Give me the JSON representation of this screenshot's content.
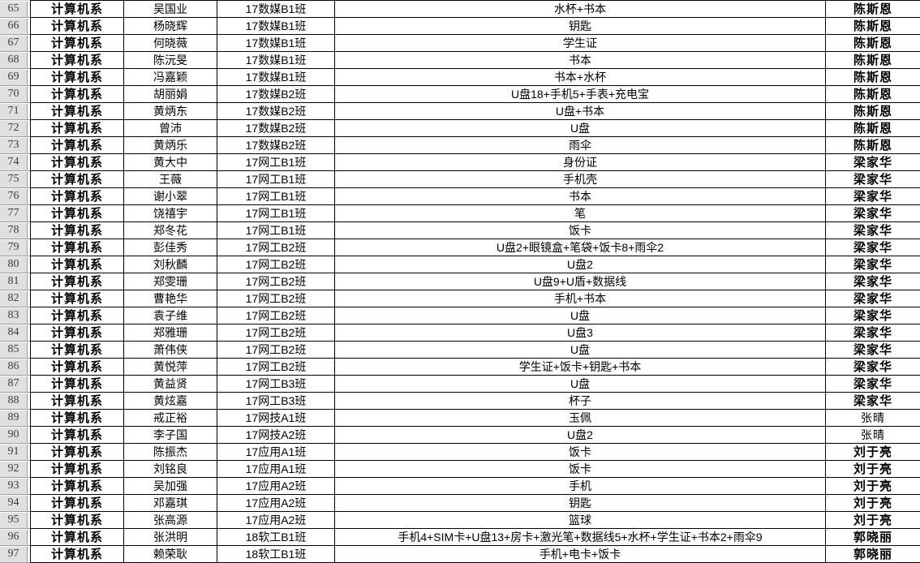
{
  "colors": {
    "grid_line": "#000000",
    "row_header_bg": "#e0e0e0",
    "row_header_text": "#3d3d3d",
    "cell_bg": "#ffffff",
    "cell_text": "#000000"
  },
  "table": {
    "visible_row_range": "65-97",
    "rows": [
      {
        "num": "65",
        "dept": "计算机系",
        "name": "吴国业",
        "cls": "17数媒B1班",
        "items": "水杯+书本",
        "handler": "陈斯恩",
        "handler_bold": true
      },
      {
        "num": "66",
        "dept": "计算机系",
        "name": "杨晓辉",
        "cls": "17数媒B1班",
        "items": "钥匙",
        "handler": "陈斯恩",
        "handler_bold": true
      },
      {
        "num": "67",
        "dept": "计算机系",
        "name": "何晓薇",
        "cls": "17数媒B1班",
        "items": "学生证",
        "handler": "陈斯恩",
        "handler_bold": true
      },
      {
        "num": "68",
        "dept": "计算机系",
        "name": "陈沅旻",
        "cls": "17数媒B1班",
        "items": "书本",
        "handler": "陈斯恩",
        "handler_bold": true
      },
      {
        "num": "69",
        "dept": "计算机系",
        "name": "冯嘉颖",
        "cls": "17数媒B1班",
        "items": "书本+水杯",
        "handler": "陈斯恩",
        "handler_bold": true
      },
      {
        "num": "70",
        "dept": "计算机系",
        "name": "胡丽娟",
        "cls": "17数媒B2班",
        "items": "U盘18+手机5+手表+充电宝",
        "handler": "陈斯恩",
        "handler_bold": true
      },
      {
        "num": "71",
        "dept": "计算机系",
        "name": "黄炳东",
        "cls": "17数媒B2班",
        "items": "U盘+书本",
        "handler": "陈斯恩",
        "handler_bold": true
      },
      {
        "num": "72",
        "dept": "计算机系",
        "name": "曾沛",
        "cls": "17数媒B2班",
        "items": "U盘",
        "handler": "陈斯恩",
        "handler_bold": true
      },
      {
        "num": "73",
        "dept": "计算机系",
        "name": "黄炳乐",
        "cls": "17数媒B2班",
        "items": "雨伞",
        "handler": "陈斯恩",
        "handler_bold": true
      },
      {
        "num": "74",
        "dept": "计算机系",
        "name": "黄大中",
        "cls": "17网工B1班",
        "items": "身份证",
        "handler": "梁家华",
        "handler_bold": true
      },
      {
        "num": "75",
        "dept": "计算机系",
        "name": "王薇",
        "cls": "17网工B1班",
        "items": "手机壳",
        "handler": "梁家华",
        "handler_bold": true
      },
      {
        "num": "76",
        "dept": "计算机系",
        "name": "谢小翠",
        "cls": "17网工B1班",
        "items": "书本",
        "handler": "梁家华",
        "handler_bold": true
      },
      {
        "num": "77",
        "dept": "计算机系",
        "name": "饶禧宇",
        "cls": "17网工B1班",
        "items": "笔",
        "handler": "梁家华",
        "handler_bold": true
      },
      {
        "num": "78",
        "dept": "计算机系",
        "name": "郑冬花",
        "cls": "17网工B1班",
        "items": "饭卡",
        "handler": "梁家华",
        "handler_bold": true
      },
      {
        "num": "79",
        "dept": "计算机系",
        "name": "彭佳秀",
        "cls": "17网工B2班",
        "items": "U盘2+眼镜盒+笔袋+饭卡8+雨伞2",
        "handler": "梁家华",
        "handler_bold": true
      },
      {
        "num": "80",
        "dept": "计算机系",
        "name": "刘秋麟",
        "cls": "17网工B2班",
        "items": "U盘2",
        "handler": "梁家华",
        "handler_bold": true
      },
      {
        "num": "81",
        "dept": "计算机系",
        "name": "郑雯珊",
        "cls": "17网工B2班",
        "items": "U盘9+U盾+数据线",
        "handler": "梁家华",
        "handler_bold": true
      },
      {
        "num": "82",
        "dept": "计算机系",
        "name": "曹艳华",
        "cls": "17网工B2班",
        "items": "手机+书本",
        "handler": "梁家华",
        "handler_bold": true
      },
      {
        "num": "83",
        "dept": "计算机系",
        "name": "袁子维",
        "cls": "17网工B2班",
        "items": "U盘",
        "handler": "梁家华",
        "handler_bold": true
      },
      {
        "num": "84",
        "dept": "计算机系",
        "name": "郑雅珊",
        "cls": "17网工B2班",
        "items": "U盘3",
        "handler": "梁家华",
        "handler_bold": true
      },
      {
        "num": "85",
        "dept": "计算机系",
        "name": "萧伟侠",
        "cls": "17网工B2班",
        "items": "U盘",
        "handler": "梁家华",
        "handler_bold": true
      },
      {
        "num": "86",
        "dept": "计算机系",
        "name": "黄悦萍",
        "cls": "17网工B2班",
        "items": "学生证+饭卡+钥匙+书本",
        "handler": "梁家华",
        "handler_bold": true
      },
      {
        "num": "87",
        "dept": "计算机系",
        "name": "黄益贤",
        "cls": "17网工B3班",
        "items": "U盘",
        "handler": "梁家华",
        "handler_bold": true
      },
      {
        "num": "88",
        "dept": "计算机系",
        "name": "黄炫嘉",
        "cls": "17网工B3班",
        "items": "杯子",
        "handler": "梁家华",
        "handler_bold": true
      },
      {
        "num": "89",
        "dept": "计算机系",
        "name": "戒正裕",
        "cls": "17网技A1班",
        "items": "玉佩",
        "handler": "张晴",
        "handler_bold": false
      },
      {
        "num": "90",
        "dept": "计算机系",
        "name": "李子国",
        "cls": "17网技A2班",
        "items": "U盘2",
        "handler": "张晴",
        "handler_bold": false
      },
      {
        "num": "91",
        "dept": "计算机系",
        "name": "陈振杰",
        "cls": "17应用A1班",
        "items": "饭卡",
        "handler": "刘于亮",
        "handler_bold": true
      },
      {
        "num": "92",
        "dept": "计算机系",
        "name": "刘铭良",
        "cls": "17应用A1班",
        "items": "饭卡",
        "handler": "刘于亮",
        "handler_bold": true
      },
      {
        "num": "93",
        "dept": "计算机系",
        "name": "吴加强",
        "cls": "17应用A2班",
        "items": "手机",
        "handler": "刘于亮",
        "handler_bold": true
      },
      {
        "num": "94",
        "dept": "计算机系",
        "name": "邓嘉琪",
        "cls": "17应用A2班",
        "items": "钥匙",
        "handler": "刘于亮",
        "handler_bold": true
      },
      {
        "num": "95",
        "dept": "计算机系",
        "name": "张高源",
        "cls": "17应用A2班",
        "items": "篮球",
        "handler": "刘于亮",
        "handler_bold": true
      },
      {
        "num": "96",
        "dept": "计算机系",
        "name": "张洪明",
        "cls": "18软工B1班",
        "items": "手机4+SIM卡+U盘13+房卡+激光笔+数据线5+水杯+学生证+书本2+雨伞9",
        "handler": "郭晓丽",
        "handler_bold": true
      },
      {
        "num": "97",
        "dept": "计算机系",
        "name": "赖荣耿",
        "cls": "18软工B1班",
        "items": "手机+电卡+饭卡",
        "handler": "郭晓丽",
        "handler_bold": true
      }
    ]
  }
}
